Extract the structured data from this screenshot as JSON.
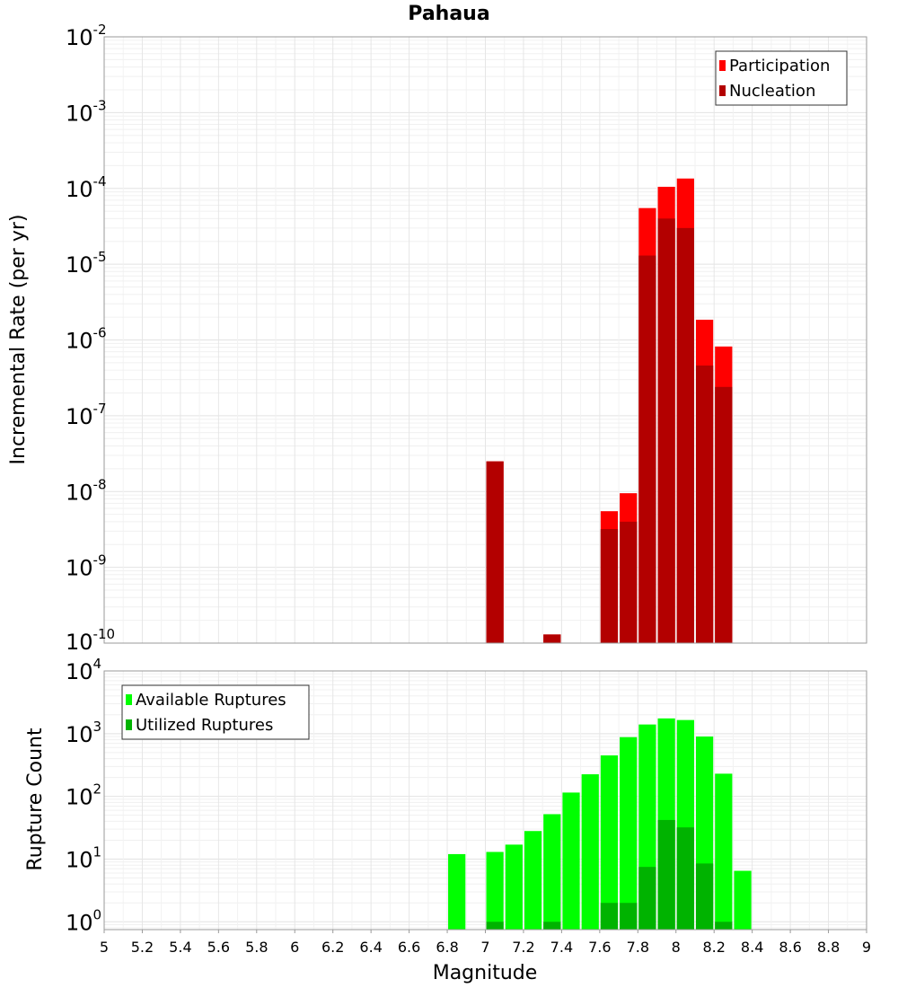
{
  "chart_data": [
    {
      "type": "bar",
      "title": "Pahaua",
      "xlabel": "",
      "ylabel": "Incremental Rate (per yr)",
      "yscale": "log",
      "ylim": [
        1e-10,
        0.01
      ],
      "xlim": [
        5,
        9
      ],
      "grid": true,
      "legend_position": "top-right",
      "bin_width": 0.1,
      "x": [
        7.05,
        7.35,
        7.65,
        7.75,
        7.85,
        7.95,
        8.05,
        8.15,
        8.25
      ],
      "series": [
        {
          "name": "Participation",
          "color": "#ff0000",
          "values": [
            2.5e-08,
            1.3e-10,
            5.5e-09,
            9.5e-09,
            5.5e-05,
            0.000105,
            0.000135,
            1.85e-06,
            8.2e-07
          ]
        },
        {
          "name": "Nucleation",
          "color": "#b30000",
          "values": [
            2.5e-08,
            1.3e-10,
            3.2e-09,
            4e-09,
            1.3e-05,
            4e-05,
            3e-05,
            4.6e-07,
            2.4e-07
          ]
        }
      ],
      "ytick_labels": [
        {
          "base": "10",
          "exp": "-2"
        },
        {
          "base": "10",
          "exp": "-3"
        },
        {
          "base": "10",
          "exp": "-4"
        },
        {
          "base": "10",
          "exp": "-5"
        },
        {
          "base": "10",
          "exp": "-6"
        },
        {
          "base": "10",
          "exp": "-7"
        },
        {
          "base": "10",
          "exp": "-8"
        },
        {
          "base": "10",
          "exp": "-9"
        },
        {
          "base": "10",
          "exp": "-10"
        }
      ]
    },
    {
      "type": "bar",
      "title": "",
      "xlabel": "Magnitude",
      "ylabel": "Rupture Count",
      "yscale": "log",
      "ylim": [
        0.75,
        10000
      ],
      "xlim": [
        5,
        9
      ],
      "grid": true,
      "legend_position": "top-left",
      "bin_width": 0.1,
      "x": [
        6.85,
        7.05,
        7.15,
        7.25,
        7.35,
        7.45,
        7.55,
        7.65,
        7.75,
        7.85,
        7.95,
        8.05,
        8.15,
        8.25,
        8.35
      ],
      "series": [
        {
          "name": "Available Ruptures",
          "color": "#00ff00",
          "values": [
            12,
            13,
            17,
            28,
            52,
            115,
            225,
            450,
            880,
            1400,
            1750,
            1650,
            900,
            230,
            6.5
          ]
        },
        {
          "name": "Utilized Ruptures",
          "color": "#00b300",
          "values": [
            0,
            1,
            0,
            0,
            1,
            0,
            0,
            2,
            2,
            7.5,
            42,
            32,
            8.5,
            1,
            0
          ]
        }
      ],
      "ytick_labels": [
        {
          "base": "10",
          "exp": "4"
        },
        {
          "base": "10",
          "exp": "3"
        },
        {
          "base": "10",
          "exp": "2"
        },
        {
          "base": "10",
          "exp": "1"
        },
        {
          "base": "10",
          "exp": "0"
        }
      ],
      "xtick_labels": [
        "5",
        "5.2",
        "5.4",
        "5.6",
        "5.8",
        "6",
        "6.2",
        "6.4",
        "6.6",
        "6.8",
        "7",
        "7.2",
        "7.4",
        "7.6",
        "7.8",
        "8",
        "8.2",
        "8.4",
        "8.6",
        "8.8",
        "9"
      ]
    }
  ]
}
